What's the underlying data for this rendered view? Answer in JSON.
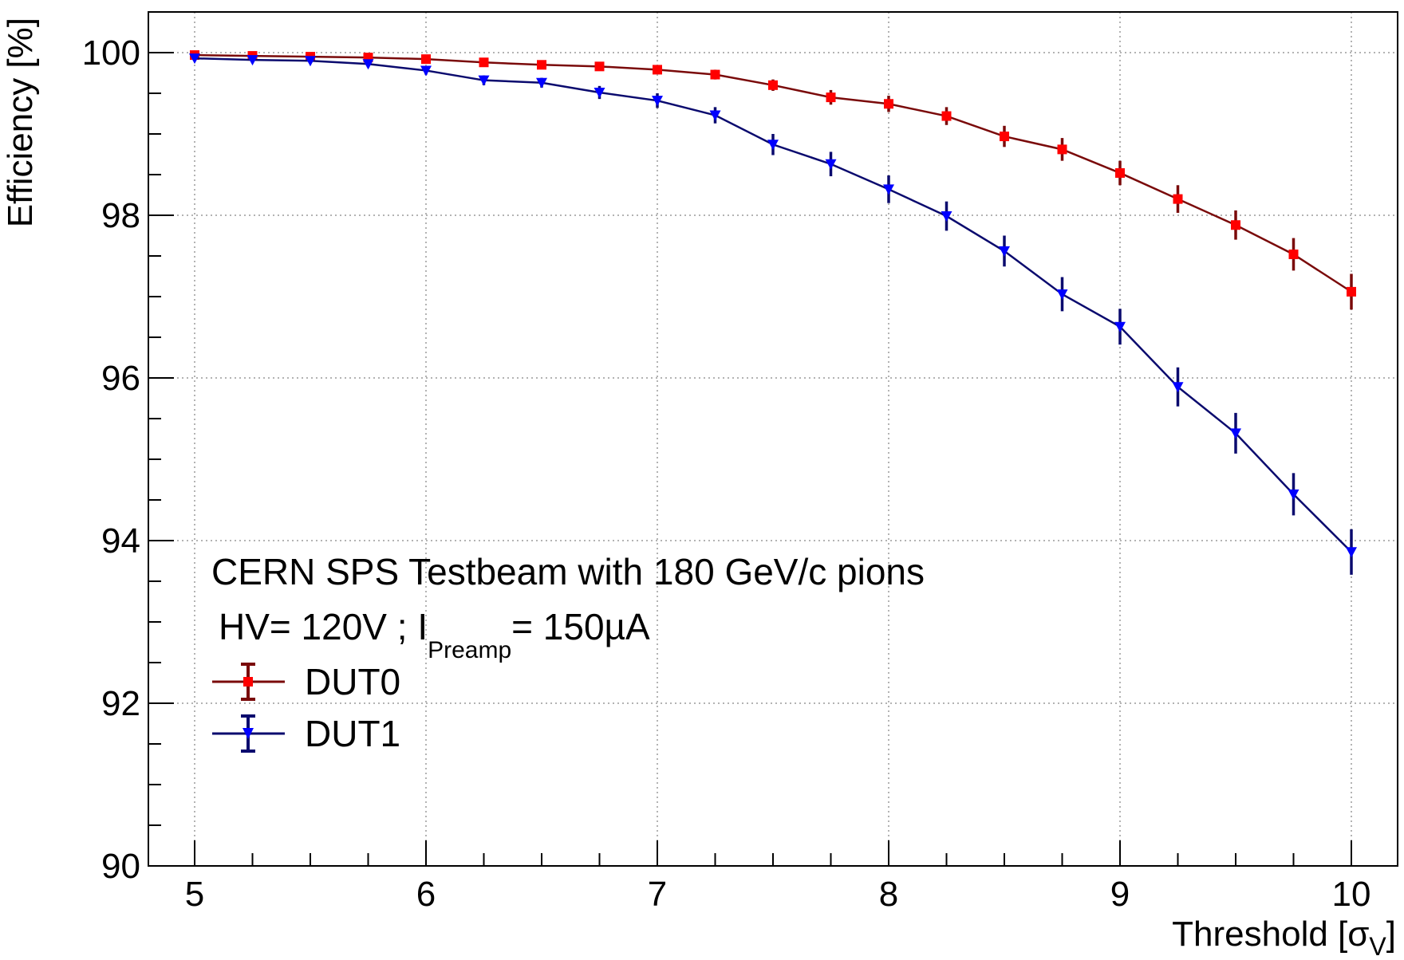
{
  "chart_data": {
    "type": "line",
    "xlabel": "Threshold [σ",
    "xlabel_sub": "V",
    "xlabel_close": "]",
    "ylabel": "Efficiency [%]",
    "xlim": [
      4.8,
      10.2
    ],
    "ylim": [
      90,
      100.5
    ],
    "grid": true,
    "x_ticks": [
      5,
      6,
      7,
      8,
      9,
      10
    ],
    "y_ticks": [
      90,
      92,
      94,
      96,
      98,
      100
    ],
    "x_tick_labels": [
      "5",
      "6",
      "7",
      "8",
      "9",
      "10"
    ],
    "y_tick_labels": [
      "90",
      "92",
      "94",
      "96",
      "98",
      "100"
    ],
    "annotations": {
      "line1": "CERN SPS Testbeam with 180 GeV/c pions",
      "line2_main": "HV= 120V ; I",
      "line2_sub": "Preamp",
      "line2_end": "= 150µA"
    },
    "legend_position": "bottom-left",
    "x": [
      5,
      5.25,
      5.5,
      5.75,
      6,
      6.25,
      6.5,
      6.75,
      7,
      7.25,
      7.5,
      7.75,
      8,
      8.25,
      8.5,
      8.75,
      9,
      9.25,
      9.5,
      9.75,
      10
    ],
    "series": [
      {
        "name": "DUT0",
        "line_color": "#7a0a0a",
        "marker_color": "#ff0000",
        "marker": "square",
        "values": [
          99.97,
          99.96,
          99.95,
          99.94,
          99.92,
          99.88,
          99.85,
          99.83,
          99.79,
          99.73,
          99.6,
          99.45,
          99.37,
          99.22,
          98.97,
          98.81,
          98.52,
          98.2,
          97.88,
          97.52,
          97.06
        ],
        "errors": [
          0.02,
          0.02,
          0.02,
          0.03,
          0.03,
          0.04,
          0.04,
          0.05,
          0.05,
          0.06,
          0.07,
          0.09,
          0.1,
          0.11,
          0.13,
          0.14,
          0.15,
          0.17,
          0.18,
          0.2,
          0.22
        ]
      },
      {
        "name": "DUT1",
        "line_color": "#0a0a6e",
        "marker_color": "#0000ff",
        "marker": "triangle-down",
        "values": [
          99.93,
          99.91,
          99.9,
          99.86,
          99.78,
          99.66,
          99.63,
          99.51,
          99.41,
          99.23,
          98.87,
          98.63,
          98.32,
          97.99,
          97.56,
          97.03,
          96.63,
          95.89,
          95.32,
          94.57,
          93.86
        ],
        "errors": [
          0.03,
          0.03,
          0.03,
          0.04,
          0.05,
          0.06,
          0.06,
          0.08,
          0.09,
          0.1,
          0.13,
          0.15,
          0.17,
          0.18,
          0.19,
          0.21,
          0.22,
          0.24,
          0.25,
          0.26,
          0.28
        ]
      }
    ]
  },
  "colors": {
    "frame": "#000000",
    "grid": "#9a9a9a"
  }
}
